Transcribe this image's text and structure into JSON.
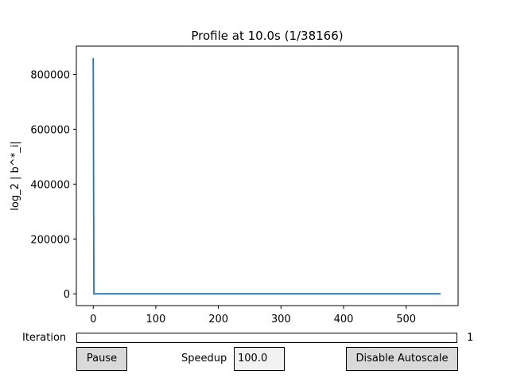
{
  "chart_data": {
    "type": "line",
    "title": "Profile at 10.0s (1/38166)",
    "xlabel": "",
    "ylabel": "log_2 | b^*_i|",
    "xlim": [
      -27,
      583
    ],
    "ylim": [
      -43000,
      903000
    ],
    "xticks": [
      0,
      100,
      200,
      300,
      400,
      500
    ],
    "yticks": [
      0,
      200000,
      400000,
      600000,
      800000
    ],
    "xtick_labels": [
      "0",
      "100",
      "200",
      "300",
      "400",
      "500"
    ],
    "ytick_labels": [
      "0",
      "200000",
      "400000",
      "600000",
      "800000"
    ],
    "series": [
      {
        "color": "#1f77b4",
        "x": [
          0,
          1,
          2,
          555
        ],
        "y": [
          860000,
          0,
          0,
          0
        ]
      }
    ]
  },
  "controls": {
    "iteration_label": "Iteration",
    "iteration_value": "1",
    "pause_label": "Pause",
    "speedup_label": "Speedup",
    "speedup_value": "100.0",
    "autoscale_label": "Disable Autoscale"
  }
}
